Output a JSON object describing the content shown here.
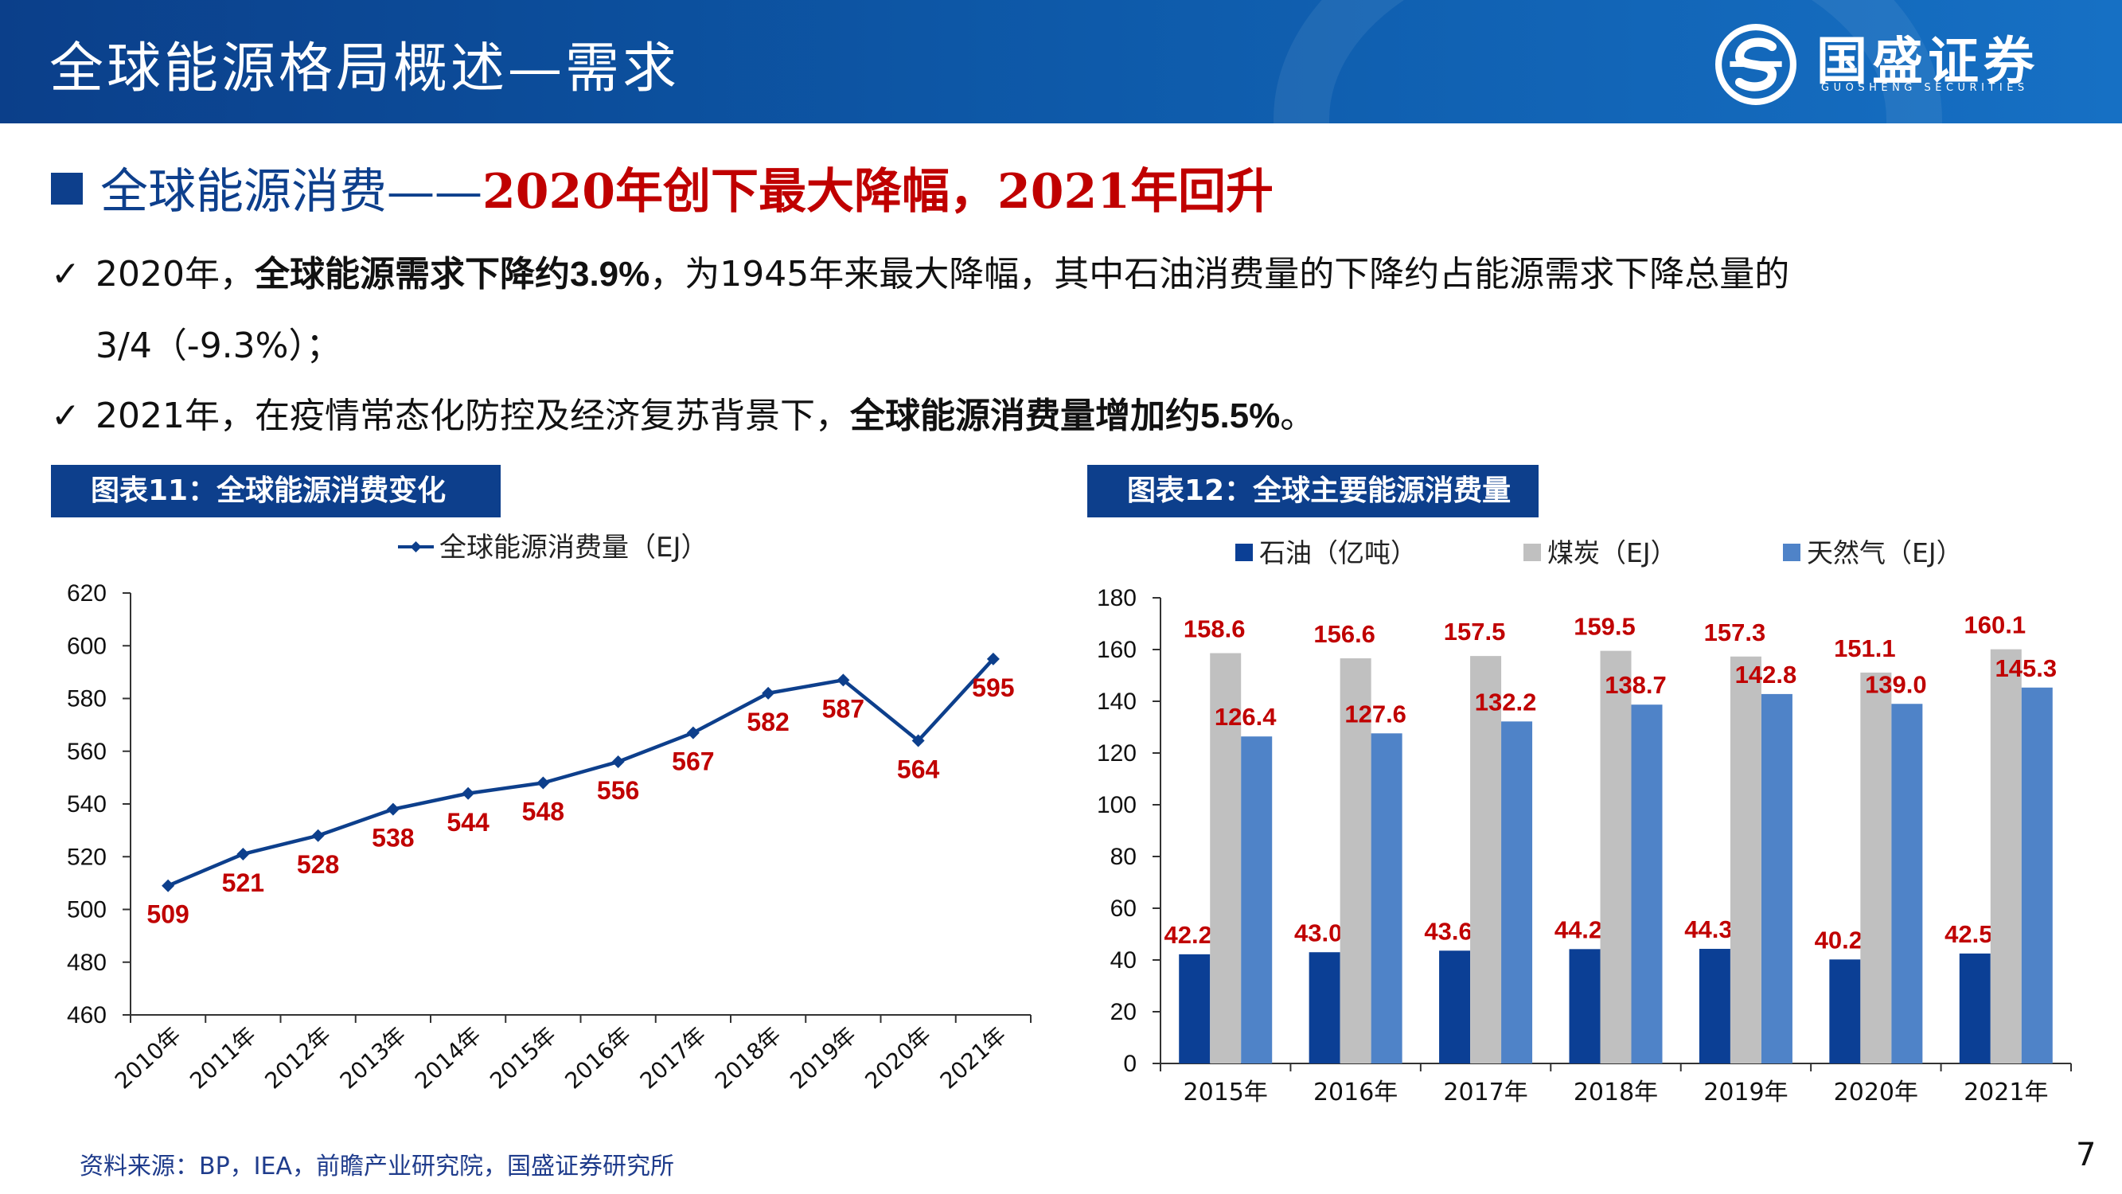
{
  "header": {
    "title": "全球能源格局概述—需求",
    "logo_cn": "国盛证券",
    "logo_en": "GUOSHENG SECURITIES"
  },
  "section": {
    "title_blue": "全球能源消费——",
    "title_red": "2020年创下最大降幅，2021年回升"
  },
  "bullets": [
    {
      "mark": "✓",
      "parts": [
        "2020年，",
        "全球能源需求下降约",
        "3.9%",
        "，为1945年来最大降幅，其中石油消费量的下降约占能源需求下降总量的"
      ],
      "line2": "3/4（-9.3%）；"
    },
    {
      "mark": "✓",
      "parts": [
        "2021年，在疫情常态化防控及经济复苏背景下，",
        "全球能源消费量增加约",
        "5.5%",
        "。"
      ]
    }
  ],
  "figure1": {
    "caption": "图表11：全球能源消费变化"
  },
  "figure2": {
    "caption": "图表12：全球主要能源消费量"
  },
  "source": "资料来源：BP，IEA，前瞻产业研究院，国盛证券研究所",
  "page_number": "7",
  "colors": {
    "navy": "#0d3f8c",
    "red": "#c00000",
    "oil": "#0b3f95",
    "coal": "#c0c0c0",
    "gas": "#4f83c8"
  },
  "chart_data": [
    {
      "type": "line",
      "legend": "全球能源消费量（EJ）",
      "categories": [
        "2010年",
        "2011年",
        "2012年",
        "2013年",
        "2014年",
        "2015年",
        "2016年",
        "2017年",
        "2018年",
        "2019年",
        "2020年",
        "2021年"
      ],
      "series": [
        {
          "name": "全球能源消费量（EJ）",
          "values": [
            509,
            521,
            528,
            538,
            544,
            548,
            556,
            567,
            582,
            587,
            564,
            595
          ]
        }
      ],
      "ylim": [
        460,
        620
      ],
      "yticks": [
        460,
        480,
        500,
        520,
        540,
        560,
        580,
        600,
        620
      ],
      "grid": false,
      "legend_position": "top"
    },
    {
      "type": "bar",
      "categories": [
        "2015年",
        "2016年",
        "2017年",
        "2018年",
        "2019年",
        "2020年",
        "2021年"
      ],
      "series": [
        {
          "name": "石油（亿吨）",
          "values": [
            42.2,
            43.0,
            43.6,
            44.2,
            44.3,
            40.2,
            42.5
          ]
        },
        {
          "name": "煤炭（EJ）",
          "values": [
            158.6,
            156.6,
            157.5,
            159.5,
            157.3,
            151.1,
            160.1
          ]
        },
        {
          "name": "天然气（EJ）",
          "values": [
            126.4,
            127.6,
            132.2,
            138.7,
            142.8,
            139.0,
            145.3
          ]
        }
      ],
      "ylim": [
        0,
        180
      ],
      "yticks": [
        0,
        20,
        40,
        60,
        80,
        100,
        120,
        140,
        160,
        180
      ],
      "grid": false,
      "legend_position": "top"
    }
  ]
}
